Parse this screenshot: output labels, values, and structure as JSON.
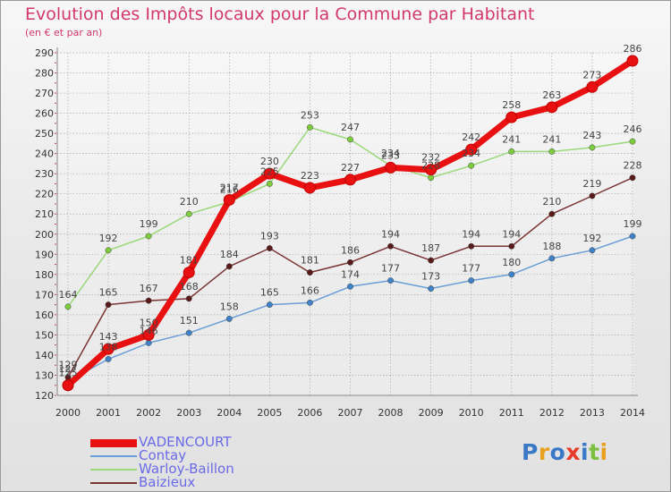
{
  "header": {
    "title": "Evolution des Impôts locaux pour la Commune par Habitant",
    "subtitle": "(en € et par an)"
  },
  "logo": {
    "text": "Proxiti"
  },
  "colors": {
    "title": "#d2386e",
    "legend_text": "#6a6ae8",
    "axis": "#999999",
    "grid": "#aaaaaa"
  },
  "chart_data": {
    "type": "line",
    "x": [
      "2000",
      "2001",
      "2002",
      "2003",
      "2004",
      "2005",
      "2006",
      "2007",
      "2008",
      "2009",
      "2010",
      "2011",
      "2012",
      "2013",
      "2014"
    ],
    "ylim": [
      120,
      290
    ],
    "yticks": [
      120,
      130,
      140,
      150,
      160,
      170,
      180,
      190,
      200,
      210,
      220,
      230,
      240,
      250,
      260,
      270,
      280,
      290
    ],
    "grid": true,
    "legend_position": "bottom-left",
    "series": [
      {
        "name": "VADENCOURT",
        "color": "#e81010",
        "marker": "#e81010",
        "width": 7,
        "radius": 6,
        "values": [
          125,
          143,
          150,
          181,
          217,
          230,
          223,
          227,
          233,
          232,
          242,
          258,
          263,
          273,
          286
        ],
        "labels": [
          "125",
          "143",
          "150",
          "181",
          "217",
          "230",
          "223",
          "227",
          "233",
          "232",
          "242",
          "258",
          "263",
          "273",
          "286"
        ]
      },
      {
        "name": "Contay",
        "color": "#6b9ed6",
        "marker": "#3f82c8",
        "width": 1.5,
        "radius": 3.2,
        "values": [
          127,
          138,
          146,
          151,
          158,
          165,
          166,
          174,
          177,
          173,
          177,
          180,
          188,
          192,
          199
        ],
        "labels": [
          "127",
          "138",
          "146",
          "151",
          "158",
          "165",
          "166",
          "174",
          "177",
          "173",
          "177",
          "180",
          "188",
          "192",
          "199"
        ]
      },
      {
        "name": "Warloy-Baillon",
        "color": "#9ad87a",
        "marker": "#7ccc3c",
        "width": 1.5,
        "radius": 3.2,
        "values": [
          164,
          192,
          199,
          210,
          216,
          225,
          253,
          247,
          234,
          228,
          234,
          241,
          241,
          243,
          246
        ],
        "labels": [
          "164",
          "192",
          "199",
          "210",
          "216",
          "225",
          "253",
          "247",
          "234",
          "228",
          "234",
          "241",
          "241",
          "243",
          "246"
        ]
      },
      {
        "name": "Baizieux",
        "color": "#7a3434",
        "marker": "#5a1a1a",
        "width": 1.5,
        "radius": 3.2,
        "values": [
          129,
          165,
          167,
          168,
          184,
          193,
          181,
          186,
          194,
          187,
          194,
          194,
          210,
          219,
          228
        ],
        "labels": [
          "129",
          "165",
          "167",
          "168",
          "184",
          "193",
          "181",
          "186",
          "194",
          "187",
          "194",
          "194",
          "210",
          "219",
          "228"
        ]
      }
    ]
  }
}
